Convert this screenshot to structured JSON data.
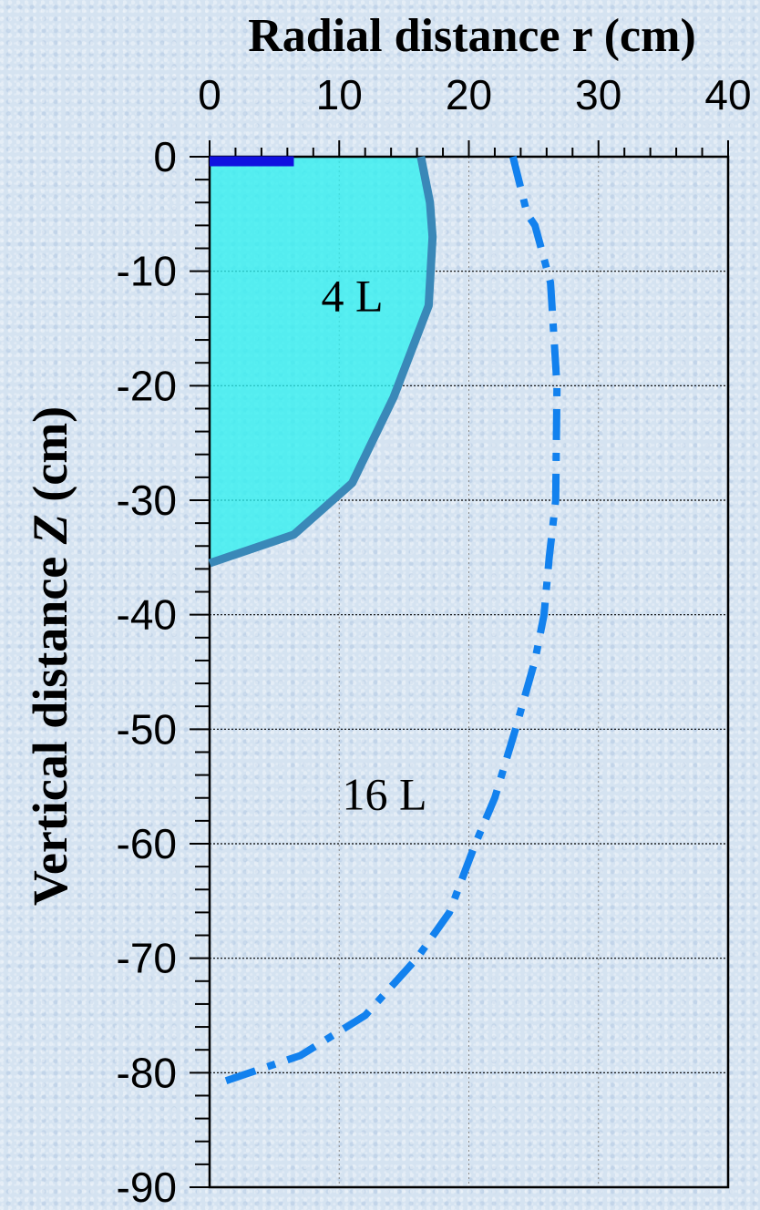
{
  "chart_data": {
    "type": "line",
    "xlabel": "Radial distance r (cm)",
    "ylabel_prefix": "Vertical distance ",
    "ylabel_symbol": "Z",
    "ylabel_unit": " (cm)",
    "xlim": [
      0,
      40
    ],
    "ylim": [
      -90,
      0
    ],
    "x_ticks": [
      0,
      10,
      20,
      30,
      40
    ],
    "x_tick_labels": [
      "0",
      "10",
      "20",
      "30",
      "40"
    ],
    "y_ticks": [
      0,
      -10,
      -20,
      -30,
      -40,
      -50,
      -60,
      -70,
      -80,
      -90
    ],
    "y_tick_labels": [
      "0",
      "-10",
      "-20",
      "-30",
      "-40",
      "-50",
      "-60",
      "-70",
      "-80",
      "-90"
    ],
    "x_axis_position": "top",
    "grid": "dotted",
    "annotations": [
      {
        "text": "4 L",
        "x": 11,
        "y": -13.5
      },
      {
        "text": "16 L",
        "x": 13.5,
        "y": -57
      }
    ],
    "source_bar": {
      "x": [
        0,
        6.5
      ],
      "y": 0,
      "color": "#1010e0"
    },
    "series": [
      {
        "label": "4 L",
        "style": "solid",
        "color": "#3a88b8",
        "fill": "#2ff0f0",
        "x": [
          16.3,
          17.0,
          17.2,
          16.9,
          14.2,
          11.0,
          6.5,
          0
        ],
        "y": [
          0,
          -4,
          -7,
          -13,
          -21,
          -28.5,
          -33,
          -35.5
        ]
      },
      {
        "label": "16 L",
        "style": "dashdot",
        "color": "#1281ee",
        "x": [
          23.4,
          24.5,
          25.1,
          26.3,
          26.8,
          26.7,
          26.2,
          25.8,
          25.1,
          23.6,
          22.0,
          20.5,
          18.5,
          16.0,
          12.0,
          7.0,
          0.5
        ],
        "y": [
          0,
          -5,
          -6,
          -11,
          -20,
          -30,
          -35,
          -40,
          -44,
          -50,
          -56,
          -60,
          -66,
          -70,
          -75,
          -78.5,
          -81
        ]
      }
    ]
  }
}
